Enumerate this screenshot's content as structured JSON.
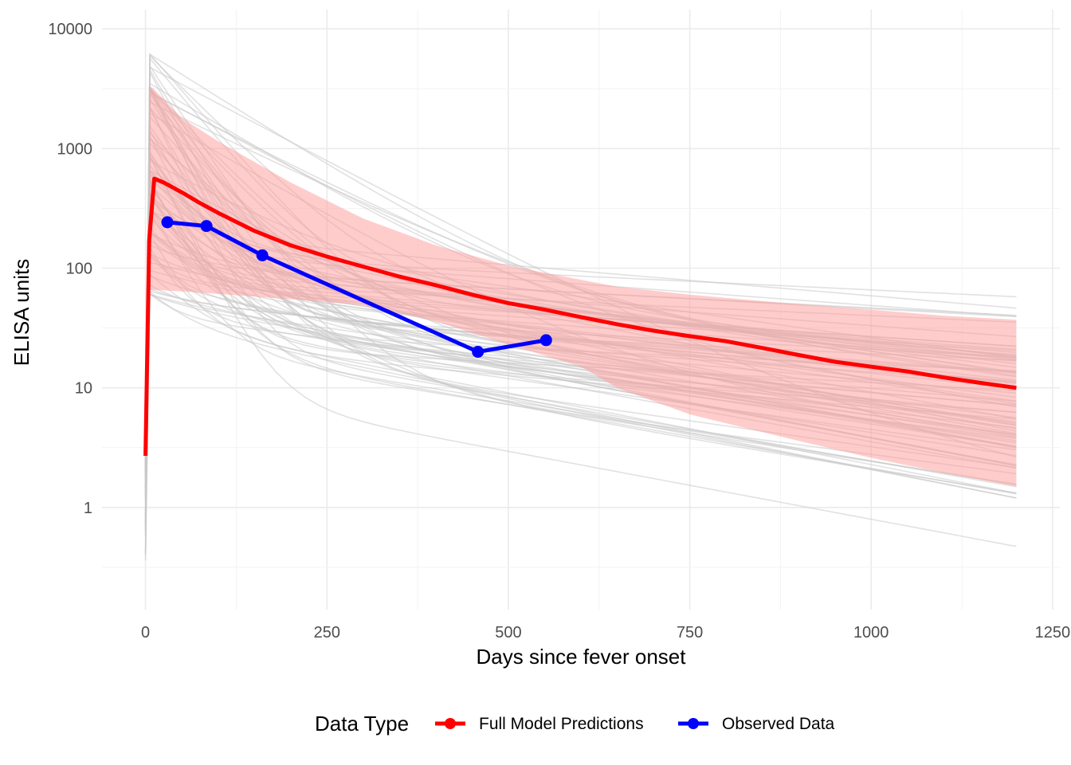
{
  "chart_data": {
    "type": "line",
    "xlabel": "Days since fever onset",
    "ylabel": "ELISA units",
    "y_scale": "log10",
    "xlim": [
      -60,
      1260
    ],
    "ylim": [
      0.14,
      14500
    ],
    "x_ticks": [
      0,
      250,
      500,
      750,
      1000,
      1250
    ],
    "x_tick_labels": [
      "0",
      "250",
      "500",
      "750",
      "1000",
      "1250"
    ],
    "y_ticks": [
      1,
      10,
      100,
      1000,
      10000
    ],
    "y_tick_labels": [
      "1",
      "10",
      "100",
      "1000",
      "10000"
    ],
    "grid": true,
    "legend": {
      "title": "Data Type",
      "position": "bottom",
      "entries": [
        {
          "label": "Full Model Predictions",
          "color": "#ff0000"
        },
        {
          "label": "Observed Data",
          "color": "#0000ff"
        }
      ]
    },
    "ribbon": {
      "name": "prediction interval",
      "color": "#ff9999",
      "x": [
        5,
        10,
        50,
        100,
        200,
        300,
        400,
        500,
        600,
        650,
        750,
        900,
        1000,
        1100,
        1200
      ],
      "upper": [
        3300,
        3200,
        1800,
        1150,
        520,
        260,
        155,
        105,
        80,
        70,
        60,
        50,
        45,
        40,
        37
      ],
      "lower": [
        65,
        66,
        64,
        61,
        55,
        49,
        36,
        23,
        15,
        10,
        6,
        3.6,
        2.6,
        1.95,
        1.5
      ]
    },
    "simulations": {
      "name": "posterior draws",
      "color": "#c8c8c8",
      "count": 90,
      "x_end": 1200
    },
    "series": [
      {
        "name": "Full Model Predictions",
        "color": "#ff0000",
        "x": [
          0,
          5,
          12,
          25,
          50,
          75,
          100,
          150,
          200,
          250,
          300,
          350,
          400,
          450,
          500,
          550,
          600,
          650,
          700,
          750,
          800,
          850,
          900,
          950,
          1000,
          1050,
          1100,
          1150,
          1200
        ],
        "y": [
          2.7,
          170,
          560,
          520,
          430,
          350,
          290,
          205,
          155,
          125,
          103,
          85,
          72,
          60,
          51,
          45,
          39,
          34,
          30,
          27,
          24.5,
          21.5,
          18.8,
          16.5,
          15.0,
          13.7,
          12.2,
          11.0,
          10.0
        ]
      },
      {
        "name": "Observed Data",
        "color": "#0000ff",
        "x": [
          30,
          84,
          161,
          458,
          552
        ],
        "y": [
          242,
          225,
          128,
          20,
          25
        ]
      }
    ]
  }
}
